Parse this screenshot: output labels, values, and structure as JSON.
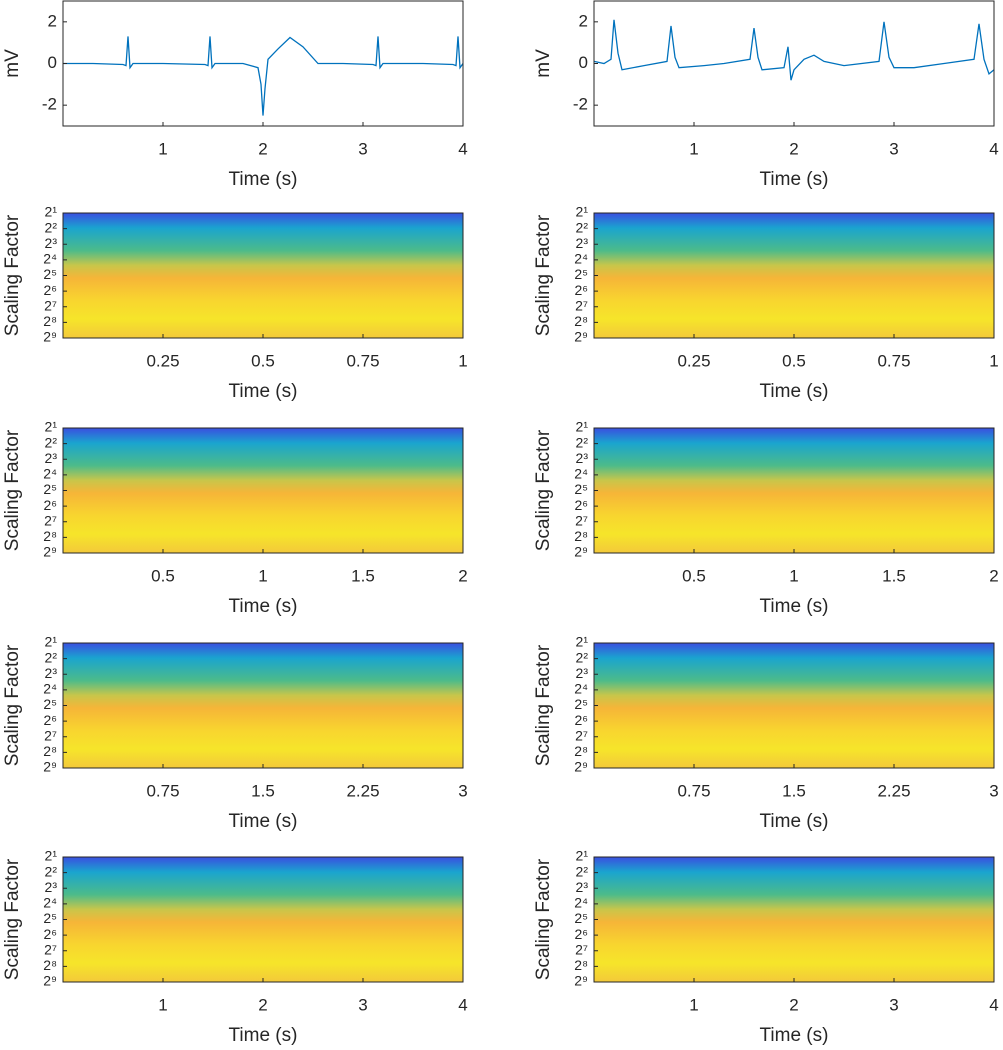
{
  "chart_data": [
    {
      "type": "line",
      "ylabel": "mV",
      "xlabel": "Time (s)",
      "color": "#0072bd",
      "x": [
        0,
        0.3,
        0.6,
        0.63,
        0.65,
        0.67,
        0.7,
        1.0,
        1.42,
        1.45,
        1.47,
        1.49,
        1.52,
        1.8,
        1.95,
        1.98,
        2.0,
        2.02,
        2.05,
        2.15,
        2.27,
        2.4,
        2.55,
        2.8,
        3.1,
        3.13,
        3.15,
        3.17,
        3.2,
        3.6,
        3.9,
        3.93,
        3.95,
        3.97,
        4.0
      ],
      "values": [
        0,
        0,
        -0.05,
        -0.1,
        1.3,
        -0.2,
        0,
        0,
        -0.05,
        -0.1,
        1.3,
        -0.2,
        0,
        0,
        -0.2,
        -1,
        -2.5,
        -1.2,
        0.2,
        0.7,
        1.25,
        0.8,
        0,
        0,
        -0.05,
        -0.1,
        1.3,
        -0.2,
        0,
        0,
        -0.05,
        -0.1,
        1.3,
        -0.2,
        0
      ],
      "xlim": [
        0,
        4
      ],
      "xticks": [
        1,
        2,
        3,
        4
      ],
      "ylim": [
        -3,
        3
      ],
      "yticks": [
        -2,
        0,
        2
      ]
    },
    {
      "type": "line",
      "ylabel": "mV",
      "xlabel": "Time (s)",
      "color": "#0072bd",
      "x": [
        0,
        0.1,
        0.17,
        0.2,
        0.24,
        0.28,
        0.5,
        0.73,
        0.77,
        0.81,
        0.85,
        1.1,
        1.3,
        1.56,
        1.6,
        1.64,
        1.68,
        1.9,
        1.94,
        1.97,
        2.0,
        2.1,
        2.2,
        2.3,
        2.5,
        2.85,
        2.9,
        2.95,
        3.0,
        3.2,
        3.5,
        3.8,
        3.85,
        3.9,
        3.95,
        4.0
      ],
      "values": [
        0.1,
        0,
        0.2,
        2.1,
        0.5,
        -0.3,
        -0.1,
        0.1,
        1.8,
        0.3,
        -0.2,
        -0.1,
        0,
        0.2,
        1.7,
        0.3,
        -0.3,
        -0.2,
        0.8,
        -0.8,
        -0.3,
        0.2,
        0.4,
        0.1,
        -0.1,
        0.1,
        2.0,
        0.3,
        -0.2,
        -0.2,
        0,
        0.2,
        1.9,
        0.2,
        -0.5,
        -0.3
      ],
      "xlim": [
        0,
        4
      ],
      "xticks": [
        1,
        2,
        3,
        4
      ],
      "ylim": [
        -3,
        3
      ],
      "yticks": [
        -2,
        0,
        2
      ]
    },
    {
      "type": "scalogram",
      "ylabel": "Scaling Factor",
      "xlabel": "Time (s)",
      "ylog": true,
      "yreverse": true,
      "xlim": [
        0,
        1
      ],
      "xticks": [
        0.25,
        0.5,
        0.75,
        1
      ],
      "ylim": [
        2,
        512
      ],
      "yticks": [
        {
          "value": 2,
          "label": "2¹"
        },
        {
          "value": 4,
          "label": "2²"
        },
        {
          "value": 8,
          "label": "2³"
        },
        {
          "value": 16,
          "label": "2⁴"
        },
        {
          "value": 32,
          "label": "2⁵"
        },
        {
          "value": 64,
          "label": "2⁶"
        },
        {
          "value": 128,
          "label": "2⁷"
        },
        {
          "value": 256,
          "label": "2⁸"
        },
        {
          "value": 512,
          "label": "2⁹"
        }
      ]
    },
    {
      "type": "scalogram",
      "ylabel": "Scaling Factor",
      "xlabel": "Time (s)",
      "ylog": true,
      "yreverse": true,
      "xlim": [
        0,
        1
      ],
      "xticks": [
        0.25,
        0.5,
        0.75,
        1
      ],
      "ylim": [
        2,
        512
      ],
      "yticks": [
        {
          "value": 2,
          "label": "2¹"
        },
        {
          "value": 4,
          "label": "2²"
        },
        {
          "value": 8,
          "label": "2³"
        },
        {
          "value": 16,
          "label": "2⁴"
        },
        {
          "value": 32,
          "label": "2⁵"
        },
        {
          "value": 64,
          "label": "2⁶"
        },
        {
          "value": 128,
          "label": "2⁷"
        },
        {
          "value": 256,
          "label": "2⁸"
        },
        {
          "value": 512,
          "label": "2⁹"
        }
      ]
    },
    {
      "type": "scalogram",
      "ylabel": "Scaling Factor",
      "xlabel": "Time (s)",
      "ylog": true,
      "yreverse": true,
      "xlim": [
        0,
        2
      ],
      "xticks": [
        0.5,
        1,
        1.5,
        2
      ],
      "ylim": [
        2,
        512
      ],
      "yticks": [
        {
          "value": 2,
          "label": "2¹"
        },
        {
          "value": 4,
          "label": "2²"
        },
        {
          "value": 8,
          "label": "2³"
        },
        {
          "value": 16,
          "label": "2⁴"
        },
        {
          "value": 32,
          "label": "2⁵"
        },
        {
          "value": 64,
          "label": "2⁶"
        },
        {
          "value": 128,
          "label": "2⁷"
        },
        {
          "value": 256,
          "label": "2⁸"
        },
        {
          "value": 512,
          "label": "2⁹"
        }
      ]
    },
    {
      "type": "scalogram",
      "ylabel": "Scaling Factor",
      "xlabel": "Time (s)",
      "ylog": true,
      "yreverse": true,
      "xlim": [
        0,
        2
      ],
      "xticks": [
        0.5,
        1,
        1.5,
        2
      ],
      "ylim": [
        2,
        512
      ],
      "yticks": [
        {
          "value": 2,
          "label": "2¹"
        },
        {
          "value": 4,
          "label": "2²"
        },
        {
          "value": 8,
          "label": "2³"
        },
        {
          "value": 16,
          "label": "2⁴"
        },
        {
          "value": 32,
          "label": "2⁵"
        },
        {
          "value": 64,
          "label": "2⁶"
        },
        {
          "value": 128,
          "label": "2⁷"
        },
        {
          "value": 256,
          "label": "2⁸"
        },
        {
          "value": 512,
          "label": "2⁹"
        }
      ]
    },
    {
      "type": "scalogram",
      "ylabel": "Scaling Factor",
      "xlabel": "Time (s)",
      "ylog": true,
      "yreverse": true,
      "xlim": [
        0,
        3
      ],
      "xticks": [
        0.75,
        1.5,
        2.25,
        3
      ],
      "ylim": [
        2,
        512
      ],
      "yticks": [
        {
          "value": 2,
          "label": "2¹"
        },
        {
          "value": 4,
          "label": "2²"
        },
        {
          "value": 8,
          "label": "2³"
        },
        {
          "value": 16,
          "label": "2⁴"
        },
        {
          "value": 32,
          "label": "2⁵"
        },
        {
          "value": 64,
          "label": "2⁶"
        },
        {
          "value": 128,
          "label": "2⁷"
        },
        {
          "value": 256,
          "label": "2⁸"
        },
        {
          "value": 512,
          "label": "2⁹"
        }
      ]
    },
    {
      "type": "scalogram",
      "ylabel": "Scaling Factor",
      "xlabel": "Time (s)",
      "ylog": true,
      "yreverse": true,
      "xlim": [
        0,
        3
      ],
      "xticks": [
        0.75,
        1.5,
        2.25,
        3
      ],
      "ylim": [
        2,
        512
      ],
      "yticks": [
        {
          "value": 2,
          "label": "2¹"
        },
        {
          "value": 4,
          "label": "2²"
        },
        {
          "value": 8,
          "label": "2³"
        },
        {
          "value": 16,
          "label": "2⁴"
        },
        {
          "value": 32,
          "label": "2⁵"
        },
        {
          "value": 64,
          "label": "2⁶"
        },
        {
          "value": 128,
          "label": "2⁷"
        },
        {
          "value": 256,
          "label": "2⁸"
        },
        {
          "value": 512,
          "label": "2⁹"
        }
      ]
    },
    {
      "type": "scalogram",
      "ylabel": "Scaling Factor",
      "xlabel": "Time (s)",
      "ylog": true,
      "yreverse": true,
      "xlim": [
        0,
        4
      ],
      "xticks": [
        1,
        2,
        3,
        4
      ],
      "ylim": [
        2,
        512
      ],
      "yticks": [
        {
          "value": 2,
          "label": "2¹"
        },
        {
          "value": 4,
          "label": "2²"
        },
        {
          "value": 8,
          "label": "2³"
        },
        {
          "value": 16,
          "label": "2⁴"
        },
        {
          "value": 32,
          "label": "2⁵"
        },
        {
          "value": 64,
          "label": "2⁶"
        },
        {
          "value": 128,
          "label": "2⁷"
        },
        {
          "value": 256,
          "label": "2⁸"
        },
        {
          "value": 512,
          "label": "2⁹"
        }
      ]
    },
    {
      "type": "scalogram",
      "ylabel": "Scaling Factor",
      "xlabel": "Time (s)",
      "ylog": true,
      "yreverse": true,
      "xlim": [
        0,
        4
      ],
      "xticks": [
        1,
        2,
        3,
        4
      ],
      "ylim": [
        2,
        512
      ],
      "yticks": [
        {
          "value": 2,
          "label": "2¹"
        },
        {
          "value": 4,
          "label": "2²"
        },
        {
          "value": 8,
          "label": "2³"
        },
        {
          "value": 16,
          "label": "2⁴"
        },
        {
          "value": 32,
          "label": "2⁵"
        },
        {
          "value": 64,
          "label": "2⁶"
        },
        {
          "value": 128,
          "label": "2⁷"
        },
        {
          "value": 256,
          "label": "2⁸"
        },
        {
          "value": 512,
          "label": "2⁹"
        }
      ]
    }
  ]
}
